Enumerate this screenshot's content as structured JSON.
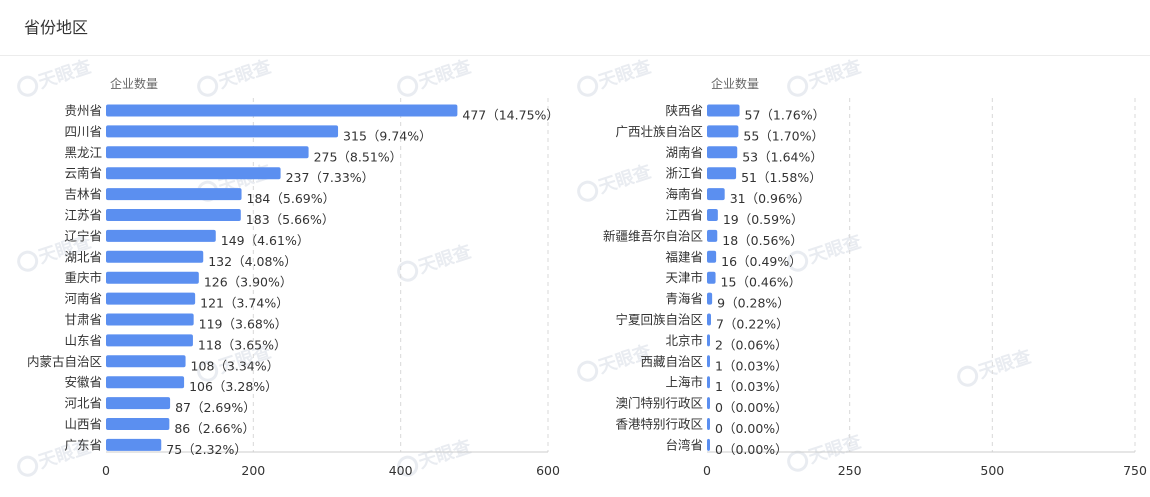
{
  "header": {
    "title": "省份地区"
  },
  "watermark": {
    "text": "天眼查"
  },
  "chart_data": [
    {
      "type": "bar",
      "orientation": "horizontal",
      "ylabel": "企业数量",
      "xlim": [
        0,
        600
      ],
      "xticks": [
        0,
        200,
        400,
        600
      ],
      "grid": "vertical dashed",
      "color": "#5b8ff0",
      "categories": [
        "贵州省",
        "四川省",
        "黑龙江",
        "云南省",
        "吉林省",
        "江苏省",
        "辽宁省",
        "湖北省",
        "重庆市",
        "河南省",
        "甘肃省",
        "山东省",
        "内蒙古自治区",
        "安徽省",
        "河北省",
        "山西省",
        "广东省"
      ],
      "values": [
        477,
        315,
        275,
        237,
        184,
        183,
        149,
        132,
        126,
        121,
        119,
        118,
        108,
        106,
        87,
        86,
        75
      ],
      "percents": [
        "14.75%",
        "9.74%",
        "8.51%",
        "7.33%",
        "5.69%",
        "5.66%",
        "4.61%",
        "4.08%",
        "3.90%",
        "3.74%",
        "3.68%",
        "3.65%",
        "3.34%",
        "3.28%",
        "2.69%",
        "2.66%",
        "2.32%"
      ]
    },
    {
      "type": "bar",
      "orientation": "horizontal",
      "ylabel": "企业数量",
      "xlim": [
        0,
        750
      ],
      "xticks": [
        0,
        250,
        500,
        750
      ],
      "grid": "vertical dashed",
      "color": "#5b8ff0",
      "categories": [
        "陕西省",
        "广西壮族自治区",
        "湖南省",
        "浙江省",
        "海南省",
        "江西省",
        "新疆维吾尔自治区",
        "福建省",
        "天津市",
        "青海省",
        "宁夏回族自治区",
        "北京市",
        "西藏自治区",
        "上海市",
        "澳门特别行政区",
        "香港特别行政区",
        "台湾省"
      ],
      "values": [
        57,
        55,
        53,
        51,
        31,
        19,
        18,
        16,
        15,
        9,
        7,
        2,
        1,
        1,
        0,
        0,
        0
      ],
      "percents": [
        "1.76%",
        "1.70%",
        "1.64%",
        "1.58%",
        "0.96%",
        "0.59%",
        "0.56%",
        "0.49%",
        "0.46%",
        "0.28%",
        "0.22%",
        "0.06%",
        "0.03%",
        "0.03%",
        "0.00%",
        "0.00%",
        "0.00%"
      ]
    }
  ]
}
